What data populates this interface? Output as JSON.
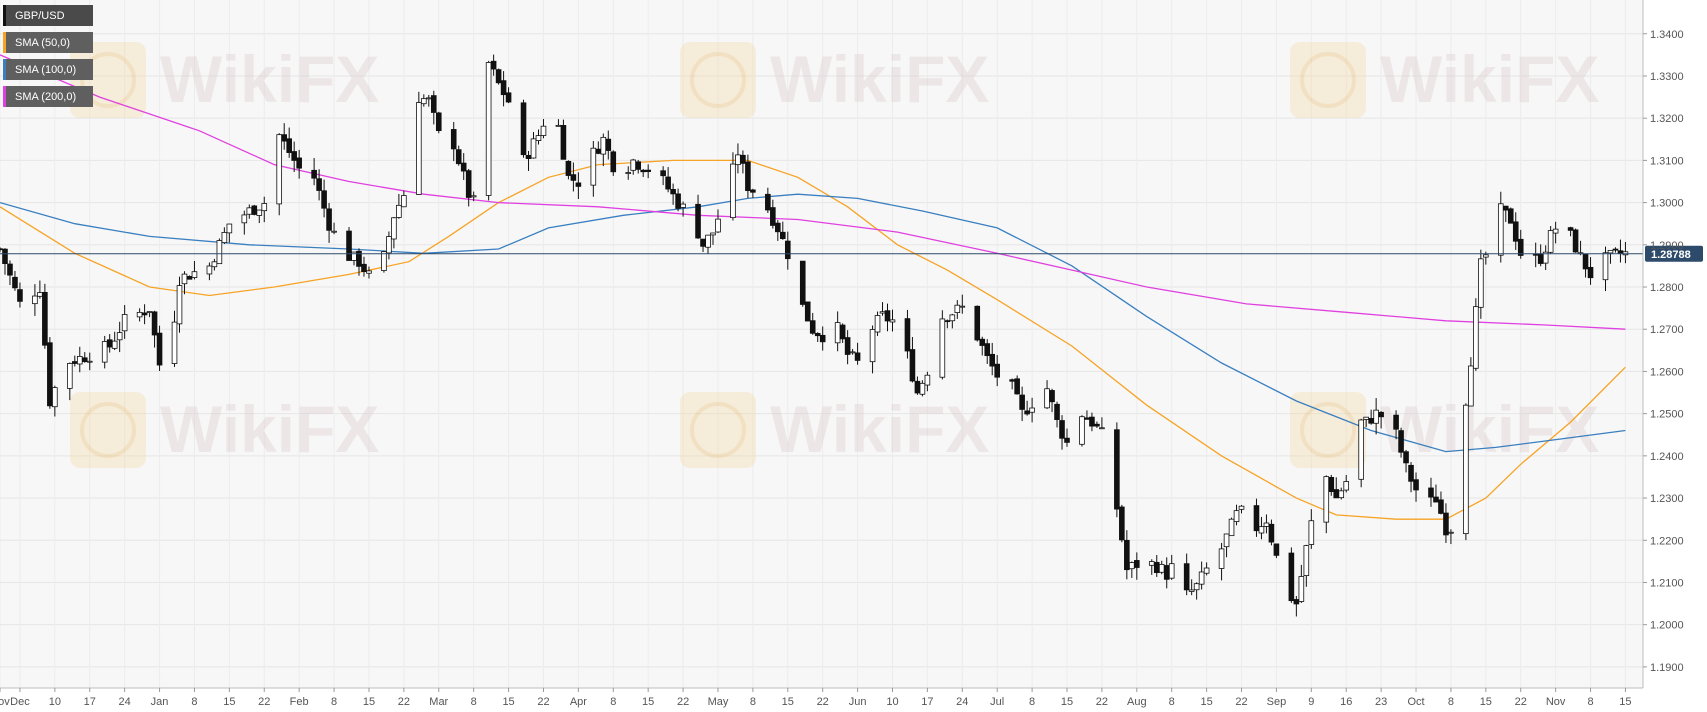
{
  "chart_data": {
    "type": "candlestick",
    "symbol": "GBP/USD",
    "legend": [
      {
        "name": "GBP/USD",
        "color": "#111111"
      },
      {
        "name": "SMA (50,0)",
        "color": "#f7a325"
      },
      {
        "name": "SMA (100,0)",
        "color": "#3a7fc0"
      },
      {
        "name": "SMA (200,0)",
        "color": "#e040e0"
      }
    ],
    "ylim": [
      1.185,
      1.348
    ],
    "y_ticks": [
      "1.3400",
      "1.3300",
      "1.3200",
      "1.3100",
      "1.3000",
      "1.2900",
      "1.2800",
      "1.2700",
      "1.2600",
      "1.2500",
      "1.2400",
      "1.2300",
      "1.2200",
      "1.2100",
      "1.2000",
      "1.1900"
    ],
    "x_ticks": [
      "Nov",
      "Dec",
      "10",
      "17",
      "24",
      "Jan",
      "8",
      "15",
      "22",
      "Feb",
      "8",
      "15",
      "22",
      "Mar",
      "8",
      "15",
      "22",
      "Apr",
      "8",
      "15",
      "22",
      "May",
      "8",
      "15",
      "22",
      "Jun",
      "10",
      "17",
      "24",
      "Jul",
      "8",
      "15",
      "22",
      "Aug",
      "8",
      "15",
      "22",
      "Sep",
      "9",
      "16",
      "23",
      "Oct",
      "8",
      "15",
      "22",
      "Nov",
      "8",
      "15"
    ],
    "x_tick_days": [
      0,
      4,
      11,
      18,
      25,
      32,
      39,
      46,
      53,
      60,
      67,
      74,
      81,
      88,
      95,
      102,
      109,
      116,
      123,
      130,
      137,
      144,
      151,
      158,
      165,
      172,
      179,
      186,
      193,
      200,
      207,
      214,
      221,
      228,
      235,
      242,
      249,
      256,
      263,
      270,
      277,
      284,
      291,
      298,
      305,
      312,
      319,
      326
    ],
    "last_price": "1.28788",
    "last_price_value": 1.28788,
    "watermark": "WikiFX",
    "waypoints": [
      [
        0,
        1.289
      ],
      [
        4,
        1.276
      ],
      [
        8,
        1.28
      ],
      [
        10,
        1.253
      ],
      [
        13,
        1.262
      ],
      [
        18,
        1.264
      ],
      [
        22,
        1.266
      ],
      [
        25,
        1.272
      ],
      [
        30,
        1.275
      ],
      [
        33,
        1.255
      ],
      [
        36,
        1.282
      ],
      [
        42,
        1.285
      ],
      [
        46,
        1.295
      ],
      [
        50,
        1.298
      ],
      [
        53,
        1.3
      ],
      [
        56,
        1.316
      ],
      [
        60,
        1.308
      ],
      [
        63,
        1.306
      ],
      [
        66,
        1.295
      ],
      [
        69,
        1.288
      ],
      [
        72,
        1.286
      ],
      [
        75,
        1.281
      ],
      [
        77,
        1.287
      ],
      [
        79,
        1.297
      ],
      [
        81,
        1.302
      ],
      [
        84,
        1.325
      ],
      [
        86,
        1.324
      ],
      [
        88,
        1.316
      ],
      [
        91,
        1.314
      ],
      [
        94,
        1.302
      ],
      [
        96,
        1.298
      ],
      [
        98,
        1.333
      ],
      [
        100,
        1.328
      ],
      [
        102,
        1.324
      ],
      [
        105,
        1.31
      ],
      [
        108,
        1.316
      ],
      [
        110,
        1.322
      ],
      [
        112,
        1.318
      ],
      [
        114,
        1.306
      ],
      [
        116,
        1.305
      ],
      [
        118,
        1.31
      ],
      [
        121,
        1.315
      ],
      [
        124,
        1.306
      ],
      [
        127,
        1.31
      ],
      [
        130,
        1.308
      ],
      [
        133,
        1.305
      ],
      [
        136,
        1.3
      ],
      [
        139,
        1.296
      ],
      [
        141,
        1.29
      ],
      [
        143,
        1.293
      ],
      [
        146,
        1.303
      ],
      [
        148,
        1.312
      ],
      [
        150,
        1.304
      ],
      [
        153,
        1.301
      ],
      [
        156,
        1.294
      ],
      [
        158,
        1.288
      ],
      [
        160,
        1.278
      ],
      [
        163,
        1.27
      ],
      [
        166,
        1.268
      ],
      [
        168,
        1.27
      ],
      [
        170,
        1.264
      ],
      [
        172,
        1.262
      ],
      [
        174,
        1.269
      ],
      [
        177,
        1.273
      ],
      [
        179,
        1.272
      ],
      [
        181,
        1.268
      ],
      [
        184,
        1.255
      ],
      [
        187,
        1.263
      ],
      [
        189,
        1.273
      ],
      [
        191,
        1.274
      ],
      [
        193,
        1.275
      ],
      [
        195,
        1.271
      ],
      [
        198,
        1.263
      ],
      [
        200,
        1.259
      ],
      [
        203,
        1.256
      ],
      [
        205,
        1.25
      ],
      [
        208,
        1.254
      ],
      [
        210,
        1.256
      ],
      [
        212,
        1.248
      ],
      [
        214,
        1.243
      ],
      [
        217,
        1.25
      ],
      [
        219,
        1.248
      ],
      [
        221,
        1.245
      ],
      [
        223,
        1.235
      ],
      [
        226,
        1.213
      ],
      [
        229,
        1.215
      ],
      [
        232,
        1.214
      ],
      [
        234,
        1.212
      ],
      [
        236,
        1.215
      ],
      [
        238,
        1.207
      ],
      [
        240,
        1.209
      ],
      [
        243,
        1.215
      ],
      [
        245,
        1.218
      ],
      [
        248,
        1.226
      ],
      [
        250,
        1.227
      ],
      [
        252,
        1.223
      ],
      [
        254,
        1.225
      ],
      [
        256,
        1.216
      ],
      [
        258,
        1.208
      ],
      [
        260,
        1.205
      ],
      [
        262,
        1.218
      ],
      [
        264,
        1.23
      ],
      [
        266,
        1.235
      ],
      [
        268,
        1.23
      ],
      [
        270,
        1.234
      ],
      [
        272,
        1.248
      ],
      [
        274,
        1.248
      ],
      [
        276,
        1.25
      ],
      [
        278,
        1.249
      ],
      [
        280,
        1.245
      ],
      [
        282,
        1.237
      ],
      [
        284,
        1.232
      ],
      [
        286,
        1.228
      ],
      [
        288,
        1.23
      ],
      [
        290,
        1.223
      ],
      [
        292,
        1.223
      ],
      [
        293,
        1.244
      ],
      [
        295,
        1.263
      ],
      [
        297,
        1.285
      ],
      [
        299,
        1.29
      ],
      [
        301,
        1.298
      ],
      [
        303,
        1.296
      ],
      [
        305,
        1.288
      ],
      [
        307,
        1.286
      ],
      [
        309,
        1.287
      ],
      [
        311,
        1.292
      ],
      [
        313,
        1.296
      ],
      [
        315,
        1.292
      ],
      [
        317,
        1.287
      ],
      [
        319,
        1.283
      ],
      [
        321,
        1.286
      ],
      [
        323,
        1.287
      ],
      [
        325,
        1.2879
      ]
    ],
    "sma_series": [
      {
        "name": "SMA (50,0)",
        "color": "#f7a325",
        "points": [
          [
            0,
            1.299
          ],
          [
            15,
            1.288
          ],
          [
            30,
            1.28
          ],
          [
            42,
            1.278
          ],
          [
            55,
            1.28
          ],
          [
            70,
            1.283
          ],
          [
            82,
            1.286
          ],
          [
            90,
            1.292
          ],
          [
            100,
            1.3
          ],
          [
            110,
            1.306
          ],
          [
            120,
            1.309
          ],
          [
            135,
            1.31
          ],
          [
            150,
            1.31
          ],
          [
            160,
            1.306
          ],
          [
            170,
            1.299
          ],
          [
            180,
            1.29
          ],
          [
            190,
            1.284
          ],
          [
            200,
            1.277
          ],
          [
            215,
            1.266
          ],
          [
            230,
            1.252
          ],
          [
            245,
            1.24
          ],
          [
            260,
            1.23
          ],
          [
            268,
            1.226
          ],
          [
            280,
            1.225
          ],
          [
            290,
            1.225
          ],
          [
            298,
            1.23
          ],
          [
            305,
            1.238
          ],
          [
            315,
            1.248
          ],
          [
            326,
            1.261
          ]
        ]
      },
      {
        "name": "SMA (100,0)",
        "color": "#3a7fc0",
        "points": [
          [
            0,
            1.3
          ],
          [
            15,
            1.295
          ],
          [
            30,
            1.292
          ],
          [
            50,
            1.29
          ],
          [
            70,
            1.289
          ],
          [
            85,
            1.288
          ],
          [
            100,
            1.289
          ],
          [
            110,
            1.294
          ],
          [
            125,
            1.297
          ],
          [
            140,
            1.299
          ],
          [
            150,
            1.301
          ],
          [
            160,
            1.302
          ],
          [
            172,
            1.301
          ],
          [
            185,
            1.298
          ],
          [
            200,
            1.294
          ],
          [
            215,
            1.285
          ],
          [
            230,
            1.273
          ],
          [
            245,
            1.262
          ],
          [
            260,
            1.253
          ],
          [
            275,
            1.246
          ],
          [
            290,
            1.241
          ],
          [
            300,
            1.242
          ],
          [
            313,
            1.244
          ],
          [
            326,
            1.246
          ]
        ]
      },
      {
        "name": "SMA (200,0)",
        "color": "#e040e0",
        "points": [
          [
            0,
            1.335
          ],
          [
            20,
            1.325
          ],
          [
            40,
            1.317
          ],
          [
            55,
            1.309
          ],
          [
            70,
            1.305
          ],
          [
            85,
            1.302
          ],
          [
            100,
            1.3
          ],
          [
            120,
            1.299
          ],
          [
            140,
            1.297
          ],
          [
            160,
            1.296
          ],
          [
            180,
            1.293
          ],
          [
            200,
            1.288
          ],
          [
            215,
            1.284
          ],
          [
            230,
            1.28
          ],
          [
            250,
            1.276
          ],
          [
            270,
            1.274
          ],
          [
            290,
            1.272
          ],
          [
            310,
            1.271
          ],
          [
            326,
            1.27
          ]
        ]
      }
    ]
  }
}
